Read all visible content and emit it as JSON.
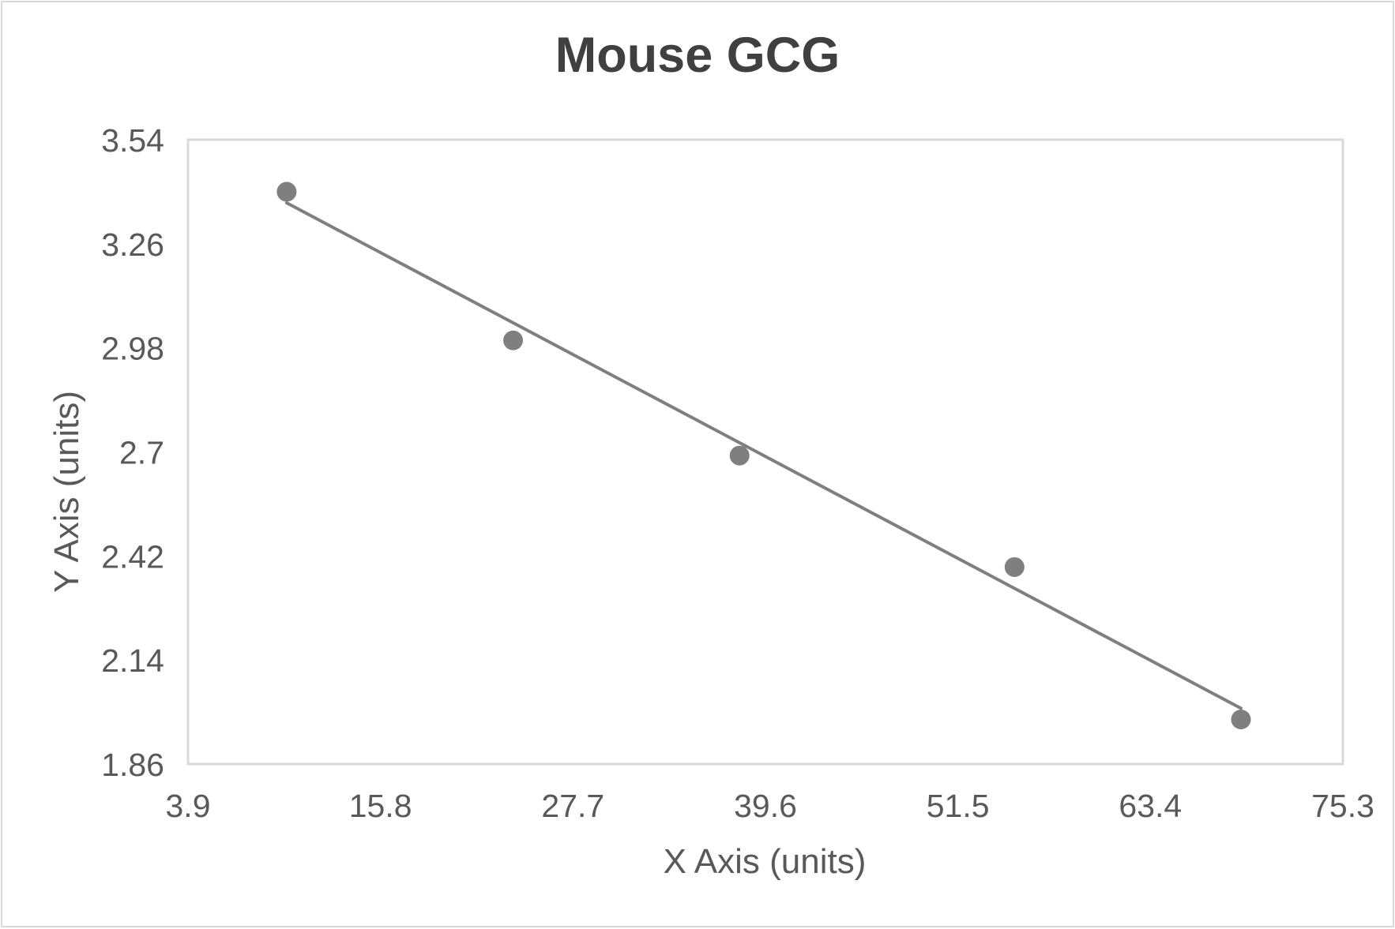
{
  "chart_data": {
    "type": "scatter",
    "title": "Mouse GCG",
    "xlabel": "X Axis (units)",
    "ylabel": "Y Axis (units)",
    "xlim": [
      3.9,
      75.3
    ],
    "ylim": [
      1.86,
      3.54
    ],
    "x_ticks": [
      "3.9",
      "15.8",
      "27.7",
      "39.6",
      "51.5",
      "63.4",
      "75.3"
    ],
    "y_ticks": [
      "3.54",
      "3.26",
      "2.98",
      "2.7",
      "2.42",
      "2.14",
      "1.86"
    ],
    "grid": false,
    "legend": null,
    "series": [
      {
        "name": "Mouse GCG",
        "x": [
          10,
          24,
          38,
          55,
          69
        ],
        "y": [
          3.4,
          3.0,
          2.69,
          2.39,
          1.98
        ],
        "marker_color": "#7f7f7f"
      }
    ],
    "trendline": {
      "type": "linear",
      "x": [
        10,
        69
      ],
      "y": [
        3.37,
        2.01
      ],
      "color": "#7f7f7f"
    }
  },
  "colors": {
    "text": "#595959",
    "title": "#404040",
    "plot_border": "#d9d9d9",
    "marker": "#7f7f7f"
  }
}
